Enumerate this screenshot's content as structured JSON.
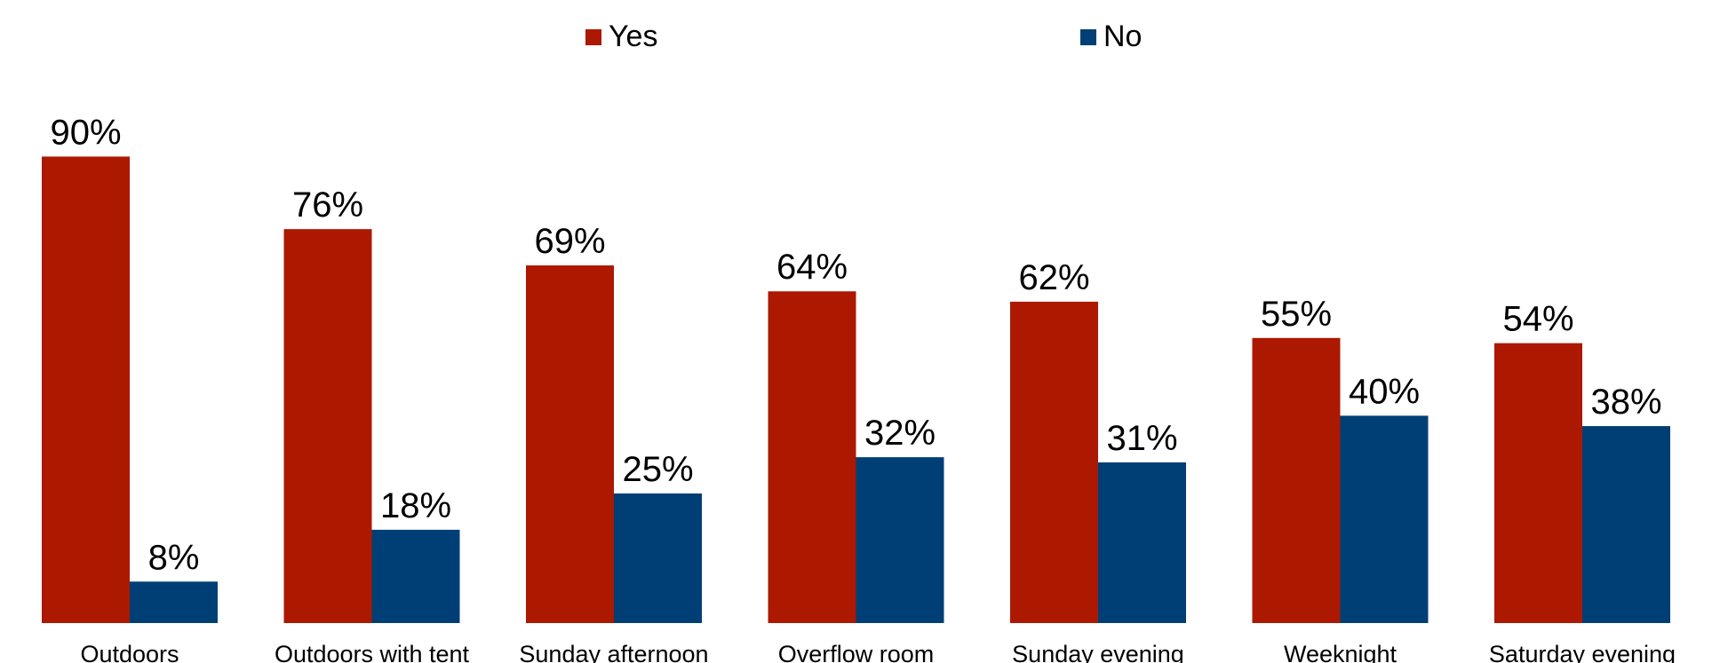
{
  "chart_data": {
    "type": "bar",
    "categories": [
      "Outdoors",
      "Outdoors with tent",
      "Sunday afternoon",
      "Overflow room",
      "Sunday evening",
      "Weeknight",
      "Saturday evening"
    ],
    "series": [
      {
        "name": "Yes",
        "values": [
          90,
          76,
          69,
          64,
          62,
          55,
          54
        ],
        "labels": [
          "90%",
          "76%",
          "69%",
          "64%",
          "62%",
          "55%",
          "54%"
        ],
        "color": "#AC1800"
      },
      {
        "name": "No",
        "values": [
          8,
          18,
          25,
          32,
          31,
          40,
          38
        ],
        "labels": [
          "8%",
          "18%",
          "25%",
          "32%",
          "31%",
          "40%",
          "38%"
        ],
        "color": "#003F75"
      }
    ],
    "ylim": [
      0,
      100
    ],
    "grid": false,
    "legend_position": "top"
  }
}
